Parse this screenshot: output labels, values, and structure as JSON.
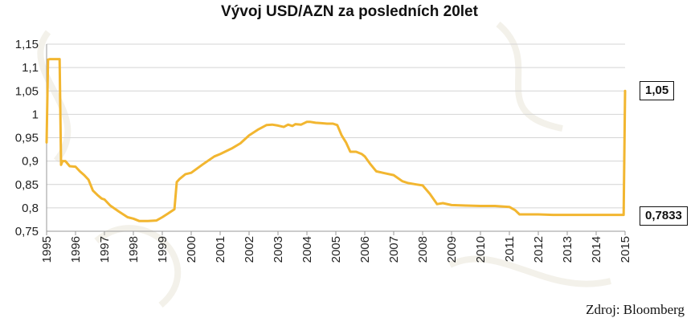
{
  "chart_data": {
    "type": "line",
    "title": "Vývoj USD/AZN za posledních 20let",
    "xlabel": "",
    "ylabel": "",
    "xlim": [
      1995,
      2015
    ],
    "ylim": [
      0.75,
      1.15
    ],
    "grid": true,
    "y_ticks": [
      "0,75",
      "0,8",
      "0,85",
      "0,9",
      "0,95",
      "1",
      "1,05",
      "1,1",
      "1,15"
    ],
    "x_ticks": [
      "1995",
      "1996",
      "1997",
      "1998",
      "1999",
      "2000",
      "2001",
      "2002",
      "2003",
      "2004",
      "2005",
      "2006",
      "2007",
      "2008",
      "2009",
      "2010",
      "2011",
      "2012",
      "2013",
      "2014",
      "2015"
    ],
    "series": [
      {
        "color": "#F2B630",
        "x": [
          1995.0,
          1995.05,
          1995.12,
          1995.3,
          1995.45,
          1995.5,
          1995.55,
          1995.65,
          1995.8,
          1996.0,
          1996.15,
          1996.3,
          1996.45,
          1996.6,
          1996.75,
          1996.9,
          1997.0,
          1997.2,
          1997.5,
          1997.8,
          1998.0,
          1998.2,
          1998.5,
          1998.8,
          1999.0,
          1999.2,
          1999.42,
          1999.5,
          1999.6,
          1999.8,
          2000.0,
          2000.4,
          2000.8,
          2001.0,
          2001.4,
          2001.7,
          2002.0,
          2002.3,
          2002.6,
          2002.8,
          2003.0,
          2003.2,
          2003.35,
          2003.5,
          2003.6,
          2003.8,
          2004.0,
          2004.1,
          2004.3,
          2004.5,
          2004.7,
          2004.9,
          2005.05,
          2005.2,
          2005.35,
          2005.5,
          2005.7,
          2005.9,
          2006.0,
          2006.2,
          2006.4,
          2006.7,
          2007.0,
          2007.3,
          2007.5,
          2007.8,
          2008.0,
          2008.25,
          2008.5,
          2008.7,
          2009.0,
          2009.5,
          2010.0,
          2010.5,
          2011.0,
          2011.2,
          2011.35,
          2011.5,
          2012.0,
          2012.5,
          2013.0,
          2013.5,
          2014.0,
          2014.5,
          2014.95,
          2015.0
        ],
        "y": [
          0.94,
          1.117,
          1.118,
          1.118,
          1.118,
          0.892,
          0.9,
          0.9,
          0.889,
          0.888,
          0.878,
          0.87,
          0.86,
          0.837,
          0.828,
          0.82,
          0.818,
          0.805,
          0.792,
          0.78,
          0.777,
          0.772,
          0.772,
          0.773,
          0.78,
          0.788,
          0.797,
          0.855,
          0.862,
          0.872,
          0.875,
          0.893,
          0.91,
          0.915,
          0.927,
          0.938,
          0.955,
          0.967,
          0.977,
          0.978,
          0.976,
          0.973,
          0.978,
          0.975,
          0.979,
          0.978,
          0.984,
          0.984,
          0.982,
          0.981,
          0.98,
          0.98,
          0.977,
          0.955,
          0.94,
          0.92,
          0.92,
          0.915,
          0.91,
          0.893,
          0.878,
          0.874,
          0.87,
          0.857,
          0.853,
          0.85,
          0.848,
          0.83,
          0.808,
          0.81,
          0.806,
          0.805,
          0.804,
          0.804,
          0.802,
          0.795,
          0.786,
          0.786,
          0.786,
          0.785,
          0.785,
          0.785,
          0.785,
          0.785,
          0.785,
          1.05
        ]
      }
    ],
    "annotations": [
      {
        "label": "1,05",
        "value": 1.05
      },
      {
        "label": "0,7833",
        "value": 0.7833
      }
    ],
    "source": "Zdroj: Bloomberg"
  }
}
